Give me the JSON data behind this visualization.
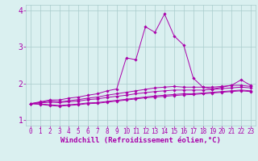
{
  "background_color": "#daf0f0",
  "grid_color": "#a8cccc",
  "line_color": "#aa00aa",
  "marker_color": "#aa00aa",
  "xlabel": "Windchill (Refroidissement éolien,°C)",
  "xlabel_color": "#aa00aa",
  "xlabel_fontsize": 6.5,
  "tick_color": "#aa00aa",
  "tick_fontsize": 5.5,
  "ytick_fontsize": 7,
  "xlim": [
    -0.5,
    23.5
  ],
  "ylim": [
    0.85,
    4.15
  ],
  "yticks": [
    1,
    2,
    3,
    4
  ],
  "xticks": [
    0,
    1,
    2,
    3,
    4,
    5,
    6,
    7,
    8,
    9,
    10,
    11,
    12,
    13,
    14,
    15,
    16,
    17,
    18,
    19,
    20,
    21,
    22,
    23
  ],
  "lines": [
    {
      "x": [
        0,
        1,
        2,
        3,
        4,
        5,
        6,
        7,
        8,
        9,
        10,
        11,
        12,
        13,
        14,
        15,
        16,
        17,
        18,
        19,
        20,
        21,
        22,
        23
      ],
      "y": [
        1.45,
        1.5,
        1.55,
        1.55,
        1.6,
        1.63,
        1.68,
        1.72,
        1.8,
        1.85,
        2.7,
        2.65,
        3.55,
        3.4,
        3.9,
        3.3,
        3.05,
        2.15,
        1.9,
        1.85,
        1.9,
        1.95,
        2.1,
        1.95
      ]
    },
    {
      "x": [
        0,
        1,
        2,
        3,
        4,
        5,
        6,
        7,
        8,
        9,
        10,
        11,
        12,
        13,
        14,
        15,
        16,
        17,
        18,
        19,
        20,
        21,
        22,
        23
      ],
      "y": [
        1.45,
        1.48,
        1.52,
        1.5,
        1.53,
        1.56,
        1.6,
        1.63,
        1.68,
        1.72,
        1.76,
        1.8,
        1.84,
        1.88,
        1.9,
        1.92,
        1.9,
        1.9,
        1.9,
        1.9,
        1.92,
        1.95,
        1.95,
        1.92
      ]
    },
    {
      "x": [
        0,
        1,
        2,
        3,
        4,
        5,
        6,
        7,
        8,
        9,
        10,
        11,
        12,
        13,
        14,
        15,
        16,
        17,
        18,
        19,
        20,
        21,
        22,
        23
      ],
      "y": [
        1.45,
        1.47,
        1.49,
        1.48,
        1.5,
        1.52,
        1.56,
        1.58,
        1.62,
        1.65,
        1.68,
        1.72,
        1.75,
        1.78,
        1.8,
        1.82,
        1.82,
        1.82,
        1.82,
        1.84,
        1.86,
        1.88,
        1.9,
        1.88
      ]
    },
    {
      "x": [
        0,
        1,
        2,
        3,
        4,
        5,
        6,
        7,
        8,
        9,
        10,
        11,
        12,
        13,
        14,
        15,
        16,
        17,
        18,
        19,
        20,
        21,
        22,
        23
      ],
      "y": [
        1.45,
        1.44,
        1.42,
        1.4,
        1.42,
        1.44,
        1.47,
        1.48,
        1.51,
        1.54,
        1.57,
        1.6,
        1.63,
        1.66,
        1.68,
        1.7,
        1.72,
        1.72,
        1.74,
        1.76,
        1.78,
        1.8,
        1.82,
        1.8
      ]
    },
    {
      "x": [
        0,
        1,
        2,
        3,
        4,
        5,
        6,
        7,
        8,
        9,
        10,
        11,
        12,
        13,
        14,
        15,
        16,
        17,
        18,
        19,
        20,
        21,
        22,
        23
      ],
      "y": [
        1.45,
        1.43,
        1.4,
        1.38,
        1.4,
        1.42,
        1.45,
        1.46,
        1.49,
        1.52,
        1.55,
        1.58,
        1.61,
        1.63,
        1.65,
        1.67,
        1.69,
        1.7,
        1.72,
        1.74,
        1.76,
        1.78,
        1.8,
        1.78
      ]
    }
  ]
}
